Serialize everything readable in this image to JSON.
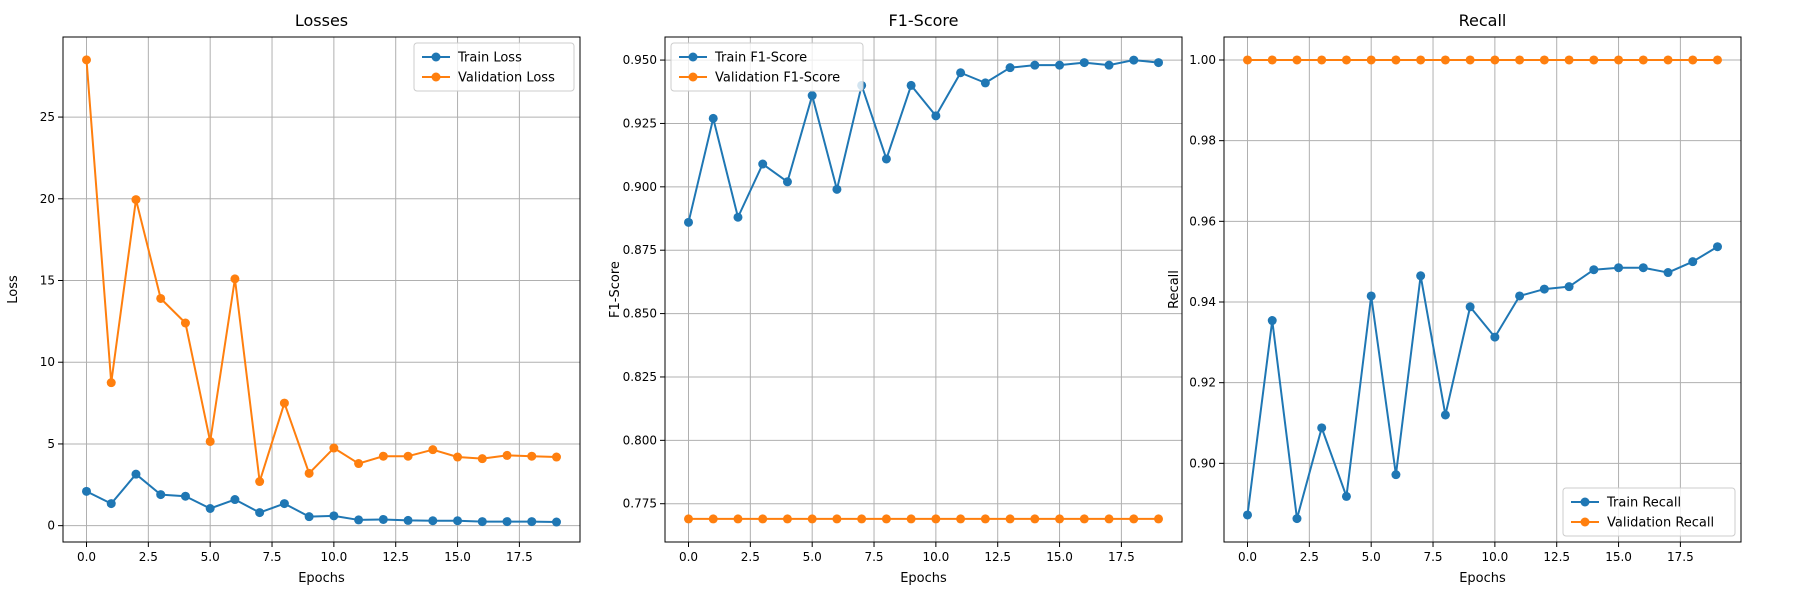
{
  "colors": {
    "train": "#1f77b4",
    "validation": "#ff7f0e",
    "grid": "#b0b0b0",
    "axis": "#000000",
    "background": "#ffffff"
  },
  "chart_data": [
    {
      "type": "line",
      "title": "Losses",
      "xlabel": "Epochs",
      "ylabel": "Loss",
      "grid": true,
      "legend_position": "top-right",
      "xlim": [
        -0.95,
        19.95
      ],
      "ylim": [
        -1.0,
        29.9
      ],
      "xticks": [
        0,
        2.5,
        5,
        7.5,
        10,
        12.5,
        15,
        17.5
      ],
      "xtick_labels": [
        "0.0",
        "2.5",
        "5.0",
        "7.5",
        "10.0",
        "12.5",
        "15.0",
        "17.5"
      ],
      "yticks": [
        0,
        5,
        10,
        15,
        20,
        25
      ],
      "ytick_labels": [
        "0",
        "5",
        "10",
        "15",
        "20",
        "25"
      ],
      "x": [
        0,
        1,
        2,
        3,
        4,
        5,
        6,
        7,
        8,
        9,
        10,
        11,
        12,
        13,
        14,
        15,
        16,
        17,
        18,
        19
      ],
      "series": [
        {
          "name": "Train Loss",
          "color_key": "train",
          "values": [
            2.1,
            1.35,
            3.15,
            1.9,
            1.8,
            1.05,
            1.6,
            0.8,
            1.35,
            0.55,
            0.6,
            0.35,
            0.38,
            0.32,
            0.3,
            0.3,
            0.25,
            0.25,
            0.25,
            0.22
          ]
        },
        {
          "name": "Validation Loss",
          "color_key": "validation",
          "values": [
            28.5,
            8.75,
            19.95,
            13.9,
            12.4,
            5.15,
            15.1,
            2.7,
            7.5,
            3.2,
            4.75,
            3.8,
            4.25,
            4.25,
            4.65,
            4.2,
            4.1,
            4.3,
            4.25,
            4.2
          ]
        }
      ]
    },
    {
      "type": "line",
      "title": "F1-Score",
      "xlabel": "Epochs",
      "ylabel": "F1-Score",
      "grid": true,
      "legend_position": "top-left",
      "xlim": [
        -0.95,
        19.95
      ],
      "ylim": [
        0.7599,
        0.9591
      ],
      "xticks": [
        0,
        2.5,
        5,
        7.5,
        10,
        12.5,
        15,
        17.5
      ],
      "xtick_labels": [
        "0.0",
        "2.5",
        "5.0",
        "7.5",
        "10.0",
        "12.5",
        "15.0",
        "17.5"
      ],
      "yticks": [
        0.775,
        0.8,
        0.825,
        0.85,
        0.875,
        0.9,
        0.925,
        0.95
      ],
      "ytick_labels": [
        "0.775",
        "0.800",
        "0.825",
        "0.850",
        "0.875",
        "0.900",
        "0.925",
        "0.950"
      ],
      "x": [
        0,
        1,
        2,
        3,
        4,
        5,
        6,
        7,
        8,
        9,
        10,
        11,
        12,
        13,
        14,
        15,
        16,
        17,
        18,
        19
      ],
      "series": [
        {
          "name": "Train F1-Score",
          "color_key": "train",
          "values": [
            0.886,
            0.927,
            0.888,
            0.909,
            0.902,
            0.936,
            0.899,
            0.94,
            0.911,
            0.94,
            0.928,
            0.945,
            0.941,
            0.947,
            0.948,
            0.948,
            0.949,
            0.948,
            0.95,
            0.949
          ]
        },
        {
          "name": "Validation F1-Score",
          "color_key": "validation",
          "values": [
            0.769,
            0.769,
            0.769,
            0.769,
            0.769,
            0.769,
            0.769,
            0.769,
            0.769,
            0.769,
            0.769,
            0.769,
            0.769,
            0.769,
            0.769,
            0.769,
            0.769,
            0.769,
            0.769,
            0.769
          ]
        }
      ]
    },
    {
      "type": "line",
      "title": "Recall",
      "xlabel": "Epochs",
      "ylabel": "Recall",
      "grid": true,
      "legend_position": "bottom-right",
      "xlim": [
        -0.95,
        19.95
      ],
      "ylim": [
        0.8805,
        1.0057
      ],
      "xticks": [
        0,
        2.5,
        5,
        7.5,
        10,
        12.5,
        15,
        17.5
      ],
      "xtick_labels": [
        "0.0",
        "2.5",
        "5.0",
        "7.5",
        "10.0",
        "12.5",
        "15.0",
        "17.5"
      ],
      "yticks": [
        0.9,
        0.92,
        0.94,
        0.96,
        0.98,
        1.0
      ],
      "ytick_labels": [
        "0.90",
        "0.92",
        "0.94",
        "0.96",
        "0.98",
        "1.00"
      ],
      "x": [
        0,
        1,
        2,
        3,
        4,
        5,
        6,
        7,
        8,
        9,
        10,
        11,
        12,
        13,
        14,
        15,
        16,
        17,
        18,
        19
      ],
      "series": [
        {
          "name": "Train Recall",
          "color_key": "train",
          "values": [
            0.8872,
            0.9354,
            0.8863,
            0.9088,
            0.8918,
            0.9415,
            0.8972,
            0.9465,
            0.912,
            0.9388,
            0.9313,
            0.9415,
            0.9432,
            0.9438,
            0.948,
            0.9485,
            0.9485,
            0.9473,
            0.95,
            0.9537
          ]
        },
        {
          "name": "Validation Recall",
          "color_key": "validation",
          "values": [
            1.0,
            1.0,
            1.0,
            1.0,
            1.0,
            1.0,
            1.0,
            1.0,
            1.0,
            1.0,
            1.0,
            1.0,
            1.0,
            1.0,
            1.0,
            1.0,
            1.0,
            1.0,
            1.0,
            1.0
          ]
        }
      ]
    }
  ]
}
